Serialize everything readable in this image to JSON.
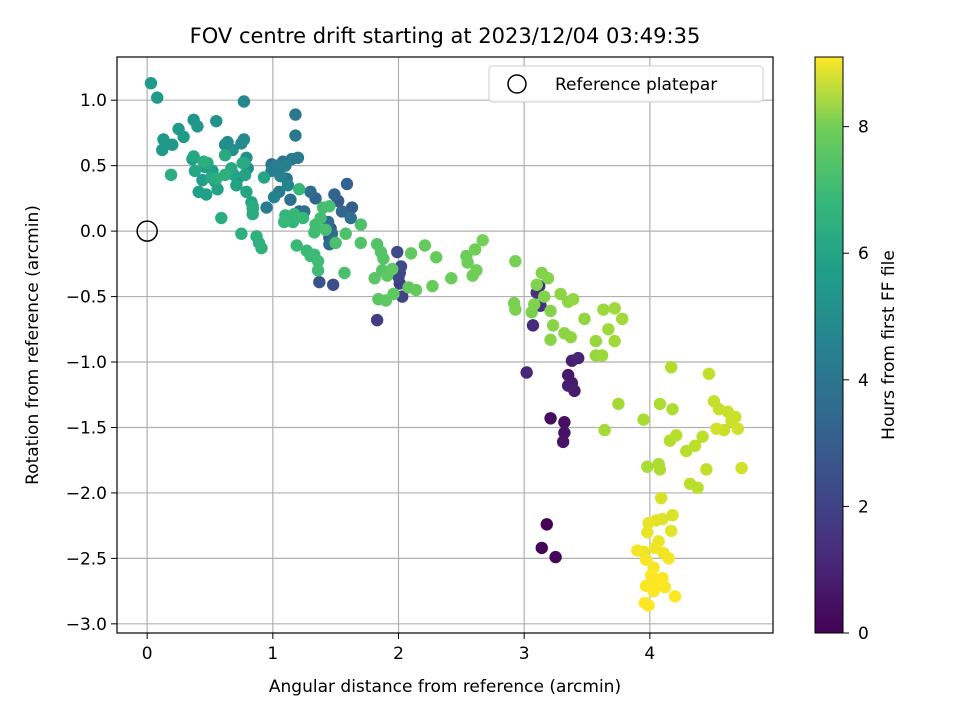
{
  "chart_data": {
    "type": "scatter",
    "title": "FOV centre drift starting at 2023/12/04 03:49:35",
    "xlabel": "Angular distance from reference (arcmin)",
    "ylabel": "Rotation from reference (arcmin)",
    "xlim": [
      -0.24,
      4.98
    ],
    "ylim": [
      -3.07,
      1.33
    ],
    "x_ticks": [
      {
        "value": 0,
        "label": "0"
      },
      {
        "value": 1,
        "label": "1"
      },
      {
        "value": 2,
        "label": "2"
      },
      {
        "value": 3,
        "label": "3"
      },
      {
        "value": 4,
        "label": "4"
      }
    ],
    "y_ticks": [
      {
        "value": 1.0,
        "label": "1.0"
      },
      {
        "value": 0.5,
        "label": "0.5"
      },
      {
        "value": 0.0,
        "label": "0.0"
      },
      {
        "value": -0.5,
        "label": "−0.5"
      },
      {
        "value": -1.0,
        "label": "−1.0"
      },
      {
        "value": -1.5,
        "label": "−1.5"
      },
      {
        "value": -2.0,
        "label": "−2.0"
      },
      {
        "value": -2.5,
        "label": "−2.5"
      },
      {
        "value": -3.0,
        "label": "−3.0"
      }
    ],
    "grid": true,
    "colormap": "viridis",
    "colorbar": {
      "label": "Hours from first FF file",
      "range": [
        0,
        9.1
      ],
      "ticks": [
        {
          "value": 0,
          "label": "0"
        },
        {
          "value": 2,
          "label": "2"
        },
        {
          "value": 4,
          "label": "4"
        },
        {
          "value": 6,
          "label": "6"
        },
        {
          "value": 8,
          "label": "8"
        }
      ]
    },
    "legend": {
      "position": "top-right",
      "entries": [
        {
          "name": "Reference platepar",
          "marker": "open-circle"
        }
      ]
    },
    "reference_point": {
      "x": 0,
      "y": 0
    },
    "points": [
      [
        3.18,
        -2.24,
        0.05
      ],
      [
        3.14,
        -2.42,
        0.1
      ],
      [
        3.25,
        -2.49,
        0.15
      ],
      [
        3.21,
        -1.43,
        0.3
      ],
      [
        3.32,
        -1.46,
        0.4
      ],
      [
        3.32,
        -1.54,
        0.45
      ],
      [
        3.31,
        -1.61,
        0.5
      ],
      [
        3.35,
        -1.1,
        0.6
      ],
      [
        3.38,
        -1.16,
        0.65
      ],
      [
        3.4,
        -1.22,
        0.7
      ],
      [
        3.35,
        -1.18,
        0.75
      ],
      [
        3.38,
        -0.99,
        0.8
      ],
      [
        3.43,
        -0.97,
        0.9
      ],
      [
        3.02,
        -1.08,
        1.0
      ],
      [
        3.07,
        -0.72,
        1.1
      ],
      [
        3.12,
        -0.42,
        1.2
      ],
      [
        3.13,
        -0.57,
        1.3
      ],
      [
        3.1,
        -0.47,
        1.35
      ],
      [
        1.83,
        -0.68,
        1.6
      ],
      [
        2.01,
        -0.4,
        1.7
      ],
      [
        2.03,
        -0.5,
        1.75
      ],
      [
        2.01,
        -0.32,
        1.8
      ],
      [
        2.0,
        -0.35,
        1.9
      ],
      [
        1.99,
        -0.16,
        2.0
      ],
      [
        2.02,
        -0.27,
        2.1
      ],
      [
        1.48,
        -0.41,
        2.2
      ],
      [
        1.37,
        -0.39,
        2.3
      ],
      [
        1.45,
        -0.05,
        2.4
      ],
      [
        1.46,
        0.02,
        2.5
      ],
      [
        1.52,
        0.23,
        2.6
      ],
      [
        1.63,
        0.18,
        2.7
      ],
      [
        1.59,
        0.36,
        2.8
      ],
      [
        1.49,
        0.28,
        2.9
      ],
      [
        1.55,
        0.15,
        3.0
      ],
      [
        1.34,
        0.25,
        3.0
      ],
      [
        1.44,
        0.07,
        3.1
      ],
      [
        1.45,
        -0.1,
        3.1
      ],
      [
        1.47,
        -0.02,
        3.2
      ],
      [
        1.3,
        0.3,
        3.2
      ],
      [
        1.62,
        0.1,
        3.3
      ],
      [
        1.21,
        0.15,
        3.3
      ],
      [
        1.25,
        0.15,
        3.35
      ],
      [
        1.14,
        0.24,
        3.4
      ],
      [
        1.11,
        0.4,
        3.45
      ],
      [
        1.08,
        0.53,
        3.5
      ],
      [
        0.99,
        0.51,
        3.5
      ],
      [
        1.18,
        0.89,
        3.6
      ],
      [
        1.18,
        0.73,
        3.65
      ],
      [
        1.15,
        0.55,
        3.7
      ],
      [
        1.2,
        0.56,
        3.75
      ],
      [
        1.05,
        0.3,
        3.8
      ],
      [
        0.95,
        0.18,
        3.8
      ],
      [
        0.99,
        0.46,
        3.85
      ],
      [
        1.03,
        0.5,
        3.9
      ],
      [
        1.1,
        0.5,
        3.95
      ],
      [
        1.01,
        0.26,
        4.0
      ],
      [
        1.06,
        0.42,
        4.05
      ],
      [
        1.12,
        0.35,
        4.1
      ],
      [
        0.77,
        0.99,
        4.2
      ],
      [
        0.77,
        0.7,
        4.3
      ],
      [
        0.75,
        0.67,
        4.35
      ],
      [
        0.64,
        0.68,
        4.4
      ],
      [
        0.62,
        0.66,
        4.45
      ],
      [
        0.8,
        0.48,
        4.5
      ],
      [
        0.72,
        0.4,
        4.5
      ],
      [
        0.79,
        0.56,
        4.55
      ],
      [
        0.68,
        0.62,
        4.6
      ],
      [
        0.55,
        0.84,
        4.65
      ],
      [
        0.37,
        0.85,
        4.7
      ],
      [
        0.4,
        0.8,
        4.75
      ],
      [
        0.2,
        0.66,
        4.8
      ],
      [
        0.12,
        0.62,
        4.8
      ],
      [
        0.13,
        0.7,
        4.85
      ],
      [
        0.03,
        1.13,
        4.9
      ],
      [
        0.08,
        1.02,
        4.9
      ],
      [
        0.25,
        0.78,
        4.95
      ],
      [
        0.29,
        0.72,
        5.0
      ],
      [
        0.36,
        0.55,
        5.0
      ],
      [
        0.46,
        0.49,
        5.05
      ],
      [
        0.52,
        0.46,
        5.05
      ],
      [
        0.44,
        0.39,
        5.1
      ],
      [
        0.54,
        0.38,
        5.1
      ],
      [
        0.41,
        0.3,
        5.15
      ],
      [
        0.47,
        0.28,
        5.15
      ],
      [
        0.56,
        0.32,
        5.2
      ],
      [
        0.69,
        0.43,
        5.2
      ],
      [
        0.71,
        0.35,
        5.25
      ],
      [
        0.78,
        0.43,
        5.25
      ],
      [
        0.83,
        0.22,
        5.3
      ],
      [
        0.84,
        0.17,
        5.3
      ],
      [
        0.79,
        0.3,
        5.35
      ],
      [
        0.93,
        0.41,
        5.35
      ],
      [
        0.37,
        0.57,
        5.4
      ],
      [
        0.38,
        0.46,
        5.4
      ],
      [
        0.48,
        0.52,
        5.45
      ],
      [
        0.51,
        0.41,
        5.45
      ],
      [
        0.62,
        0.58,
        5.5
      ],
      [
        0.67,
        0.48,
        5.5
      ],
      [
        0.76,
        0.52,
        5.55
      ],
      [
        0.77,
        0.52,
        5.55
      ],
      [
        0.84,
        0.13,
        5.6
      ],
      [
        0.84,
        0.19,
        5.6
      ],
      [
        0.59,
        0.1,
        5.65
      ],
      [
        0.19,
        0.43,
        5.65
      ],
      [
        0.45,
        0.53,
        5.7
      ],
      [
        0.55,
        0.4,
        5.7
      ],
      [
        0.62,
        0.43,
        5.75
      ],
      [
        0.75,
        -0.02,
        5.75
      ],
      [
        0.87,
        -0.04,
        5.8
      ],
      [
        0.89,
        -0.09,
        5.8
      ],
      [
        0.91,
        -0.13,
        5.85
      ],
      [
        1.1,
        0.12,
        6.0
      ],
      [
        1.16,
        0.07,
        6.0
      ],
      [
        1.17,
        0.13,
        6.05
      ],
      [
        1.21,
        0.32,
        6.05
      ],
      [
        1.09,
        0.07,
        6.1
      ],
      [
        1.24,
        0.1,
        6.1
      ],
      [
        1.19,
        -0.11,
        6.15
      ],
      [
        1.27,
        -0.15,
        6.15
      ],
      [
        1.3,
        -0.19,
        6.2
      ],
      [
        1.33,
        -0.18,
        6.2
      ],
      [
        1.36,
        -0.3,
        6.25
      ],
      [
        1.36,
        -0.23,
        6.25
      ],
      [
        1.33,
        -0.01,
        6.3
      ],
      [
        1.34,
        0.05,
        6.3
      ],
      [
        1.38,
        0.1,
        6.35
      ],
      [
        1.4,
        0.18,
        6.35
      ],
      [
        1.42,
        0.01,
        6.4
      ],
      [
        1.45,
        0.19,
        6.4
      ],
      [
        1.5,
        -0.09,
        6.45
      ],
      [
        1.57,
        -0.32,
        6.45
      ],
      [
        1.58,
        -0.02,
        6.5
      ],
      [
        1.7,
        0.05,
        6.5
      ],
      [
        1.7,
        -0.09,
        6.55
      ],
      [
        1.83,
        -0.1,
        6.6
      ],
      [
        1.86,
        -0.16,
        6.6
      ],
      [
        1.87,
        -0.3,
        6.65
      ],
      [
        1.88,
        -0.21,
        6.65
      ],
      [
        1.81,
        -0.36,
        6.7
      ],
      [
        1.84,
        -0.52,
        6.7
      ],
      [
        1.9,
        -0.53,
        6.75
      ],
      [
        1.91,
        -0.34,
        6.75
      ],
      [
        1.95,
        -0.29,
        6.8
      ],
      [
        1.96,
        -0.48,
        6.8
      ],
      [
        2.08,
        -0.43,
        6.85
      ],
      [
        2.1,
        -0.17,
        6.85
      ],
      [
        2.14,
        -0.45,
        6.9
      ],
      [
        2.21,
        -0.11,
        6.9
      ],
      [
        2.27,
        -0.42,
        6.95
      ],
      [
        2.3,
        -0.2,
        6.95
      ],
      [
        2.42,
        -0.36,
        7.0
      ],
      [
        2.54,
        -0.19,
        7.0
      ],
      [
        2.55,
        -0.24,
        7.05
      ],
      [
        2.59,
        -0.34,
        7.05
      ],
      [
        2.61,
        -0.14,
        7.1
      ],
      [
        2.62,
        -0.3,
        7.1
      ],
      [
        2.67,
        -0.07,
        7.15
      ],
      [
        2.93,
        -0.23,
        7.2
      ],
      [
        2.92,
        -0.55,
        7.2
      ],
      [
        2.93,
        -0.6,
        7.25
      ],
      [
        3.06,
        -0.62,
        7.25
      ],
      [
        3.08,
        -0.56,
        7.3
      ],
      [
        3.1,
        -0.41,
        7.3
      ],
      [
        3.14,
        -0.32,
        7.35
      ],
      [
        3.16,
        -0.5,
        7.35
      ],
      [
        3.19,
        -0.36,
        7.4
      ],
      [
        3.21,
        -0.61,
        7.4
      ],
      [
        3.23,
        -0.72,
        7.45
      ],
      [
        3.21,
        -0.83,
        7.45
      ],
      [
        3.29,
        -0.48,
        7.5
      ],
      [
        3.32,
        -0.78,
        7.5
      ],
      [
        3.37,
        -0.81,
        7.55
      ],
      [
        3.35,
        -0.54,
        7.55
      ],
      [
        3.39,
        -0.52,
        7.6
      ],
      [
        3.48,
        -0.67,
        7.6
      ],
      [
        3.57,
        -0.84,
        7.65
      ],
      [
        3.57,
        -0.95,
        7.65
      ],
      [
        3.62,
        -0.95,
        7.7
      ],
      [
        3.63,
        -0.6,
        7.7
      ],
      [
        3.67,
        -0.75,
        7.75
      ],
      [
        3.72,
        -0.59,
        7.75
      ],
      [
        3.72,
        -0.84,
        7.8
      ],
      [
        3.78,
        -0.67,
        7.8
      ],
      [
        3.64,
        -1.52,
        7.85
      ],
      [
        3.75,
        -1.32,
        7.85
      ],
      [
        3.95,
        -1.44,
        7.9
      ],
      [
        3.98,
        -1.8,
        7.9
      ],
      [
        4.08,
        -1.32,
        7.95
      ],
      [
        4.07,
        -1.78,
        7.95
      ],
      [
        4.08,
        -1.82,
        8.0
      ],
      [
        4.18,
        -1.36,
        8.0
      ],
      [
        4.17,
        -1.04,
        8.05
      ],
      [
        4.16,
        -1.6,
        8.05
      ],
      [
        4.21,
        -1.56,
        8.1
      ],
      [
        4.29,
        -1.68,
        8.1
      ],
      [
        4.32,
        -1.93,
        8.15
      ],
      [
        4.38,
        -1.96,
        8.15
      ],
      [
        4.36,
        -1.64,
        8.2
      ],
      [
        4.42,
        -1.57,
        8.2
      ],
      [
        4.45,
        -1.82,
        8.25
      ],
      [
        4.47,
        -1.09,
        8.25
      ],
      [
        4.51,
        -1.3,
        8.3
      ],
      [
        4.55,
        -1.36,
        8.3
      ],
      [
        4.59,
        -1.52,
        8.35
      ],
      [
        4.62,
        -1.38,
        8.35
      ],
      [
        4.65,
        -1.45,
        8.4
      ],
      [
        4.68,
        -1.42,
        8.4
      ],
      [
        4.7,
        -1.51,
        8.45
      ],
      [
        4.73,
        -1.81,
        8.45
      ],
      [
        4.53,
        -1.51,
        8.5
      ],
      [
        4.09,
        -2.04,
        8.55
      ],
      [
        4.18,
        -2.17,
        8.6
      ],
      [
        4.1,
        -2.2,
        8.65
      ],
      [
        4.05,
        -2.21,
        8.7
      ],
      [
        4.17,
        -2.29,
        8.75
      ],
      [
        3.99,
        -2.23,
        8.8
      ],
      [
        3.98,
        -2.3,
        8.8
      ],
      [
        4.07,
        -2.37,
        8.85
      ],
      [
        3.95,
        -2.45,
        8.85
      ],
      [
        4.04,
        -2.42,
        8.9
      ],
      [
        4.11,
        -2.46,
        8.9
      ],
      [
        4.15,
        -2.5,
        8.95
      ],
      [
        3.9,
        -2.44,
        8.95
      ],
      [
        3.97,
        -2.51,
        9.0
      ],
      [
        4.03,
        -2.57,
        9.0
      ],
      [
        4.04,
        -2.66,
        9.0
      ],
      [
        4.1,
        -2.65,
        9.05
      ],
      [
        4.12,
        -2.72,
        9.05
      ],
      [
        4.06,
        -2.71,
        9.05
      ],
      [
        3.97,
        -2.71,
        9.05
      ],
      [
        4.03,
        -2.75,
        9.1
      ],
      [
        4.08,
        -2.68,
        9.1
      ],
      [
        4.2,
        -2.79,
        9.1
      ],
      [
        3.99,
        -2.86,
        9.1
      ],
      [
        3.96,
        -2.84,
        9.1
      ],
      [
        4.01,
        -2.63,
        9.1
      ]
    ]
  }
}
